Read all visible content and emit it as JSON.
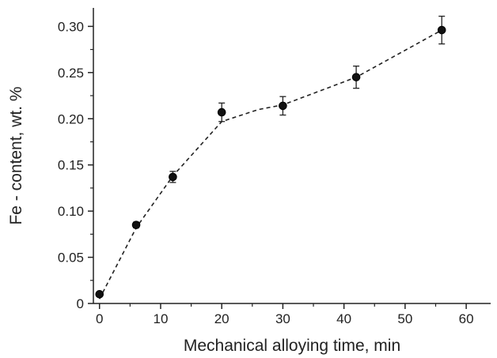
{
  "chart_data": {
    "type": "scatter",
    "xlabel": "Mechanical alloying time, min",
    "ylabel": "Fe - content, wt. %",
    "xlim": [
      -1,
      64
    ],
    "ylim": [
      0,
      0.32
    ],
    "x_ticks": [
      "0",
      "10",
      "20",
      "30",
      "40",
      "50",
      "60"
    ],
    "y_ticks": [
      "0",
      "0.05",
      "0.10",
      "0.15",
      "0.20",
      "0.25",
      "0.30"
    ],
    "grid": false,
    "legend": "none",
    "colors": {
      "marker": "#111111",
      "line": "#222222",
      "axis": "#222222"
    },
    "series": [
      {
        "points": [
          {
            "x": 0,
            "y": 0.01,
            "err": 0.002
          },
          {
            "x": 6,
            "y": 0.085,
            "err": 0.003
          },
          {
            "x": 12,
            "y": 0.137,
            "err": 0.006
          },
          {
            "x": 20,
            "y": 0.207,
            "err": 0.01
          },
          {
            "x": 30,
            "y": 0.214,
            "err": 0.01
          },
          {
            "x": 42,
            "y": 0.245,
            "err": 0.012
          },
          {
            "x": 56,
            "y": 0.296,
            "err": 0.015
          }
        ]
      }
    ],
    "trend_line": {
      "style": "dashed",
      "x": [
        0,
        6,
        12,
        20,
        26,
        30,
        42,
        56
      ],
      "y": [
        0.005,
        0.082,
        0.138,
        0.197,
        0.21,
        0.215,
        0.245,
        0.296
      ]
    }
  }
}
